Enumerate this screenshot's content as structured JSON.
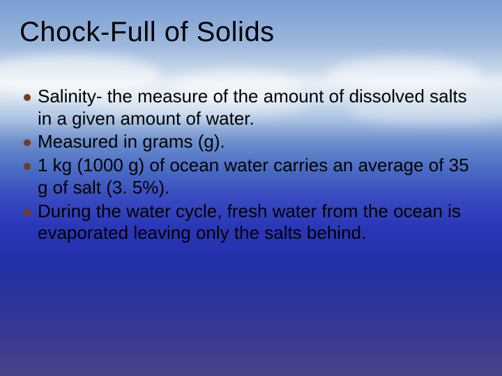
{
  "slide": {
    "title": "Chock-Full of Solids",
    "title_fontsize": 40,
    "body_fontsize": 26,
    "bullet_color": "#743e1a",
    "text_color": "#000000",
    "background_gradient_stops": [
      "#7a9dd4",
      "#9db8dc",
      "#c4d4e8",
      "#e8eef6",
      "#d8e4f0",
      "#a8c0e0",
      "#6a8ccc",
      "#4a6cc4",
      "#3a4cc0",
      "#2a38b8",
      "#2430a8",
      "#303498",
      "#3c3c90",
      "#484488"
    ],
    "bullets": [
      "Salinity- the measure of the amount of dissolved salts in a given amount of water.",
      "Measured in grams (g).",
      "1 kg (1000 g) of ocean water carries an average of 35 g of salt (3. 5%).",
      "During the water cycle, fresh water from the ocean is evaporated leaving only the salts behind."
    ]
  }
}
